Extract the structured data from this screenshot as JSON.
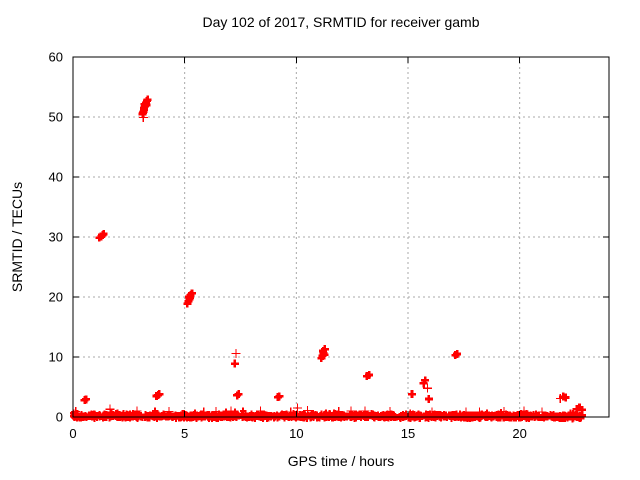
{
  "window": {
    "background": "#ffffff"
  },
  "chart_data": {
    "type": "scatter",
    "title": "Day 102 of 2017, SRMTID for receiver gamb",
    "xlabel": "GPS time / hours",
    "ylabel": "SRMTID / TECUs",
    "xlim": [
      0,
      24
    ],
    "ylim": [
      0,
      60
    ],
    "x_ticks": [
      0,
      5,
      10,
      15,
      20
    ],
    "y_ticks": [
      0,
      10,
      20,
      30,
      40,
      50,
      60
    ],
    "grid": true,
    "legend": "none",
    "marker": "plus",
    "series_color": "#ff0000",
    "grid_color": "#a8a8a8",
    "axis_color": "#000000",
    "points_bold": [
      [
        3.12,
        50.5
      ],
      [
        3.16,
        50.9
      ],
      [
        3.19,
        51.2
      ],
      [
        3.17,
        51.5
      ],
      [
        3.23,
        51.8
      ],
      [
        3.21,
        52.1
      ],
      [
        3.27,
        52.4
      ],
      [
        3.31,
        52.7
      ],
      [
        3.29,
        52.0
      ],
      [
        3.34,
        52.9
      ],
      [
        3.14,
        50.7
      ],
      [
        1.18,
        29.9
      ],
      [
        1.27,
        30.1
      ],
      [
        1.33,
        30.3
      ],
      [
        1.37,
        30.5
      ],
      [
        5.12,
        18.9
      ],
      [
        5.17,
        19.3
      ],
      [
        5.21,
        19.6
      ],
      [
        5.19,
        20.0
      ],
      [
        5.27,
        20.3
      ],
      [
        5.33,
        20.6
      ],
      [
        5.24,
        19.9
      ],
      [
        11.12,
        9.8
      ],
      [
        11.17,
        10.2
      ],
      [
        11.22,
        10.6
      ],
      [
        11.2,
        11.0
      ],
      [
        11.28,
        11.3
      ],
      [
        11.25,
        10.4
      ],
      [
        7.25,
        8.9
      ],
      [
        7.35,
        3.6
      ],
      [
        7.42,
        3.8
      ],
      [
        0.52,
        2.8
      ],
      [
        0.58,
        2.95
      ],
      [
        3.74,
        3.5
      ],
      [
        3.81,
        3.65
      ],
      [
        3.87,
        3.8
      ],
      [
        9.18,
        3.3
      ],
      [
        9.24,
        3.45
      ],
      [
        13.16,
        6.8
      ],
      [
        13.26,
        7.0
      ],
      [
        15.18,
        3.8
      ],
      [
        15.7,
        5.6
      ],
      [
        15.77,
        6.1
      ],
      [
        15.93,
        3.0
      ],
      [
        17.12,
        10.3
      ],
      [
        17.2,
        10.5
      ],
      [
        21.95,
        3.4
      ],
      [
        22.06,
        3.25
      ],
      [
        22.55,
        1.3
      ],
      [
        22.68,
        1.6
      ],
      [
        22.8,
        1.2
      ]
    ],
    "points_thin": [
      [
        3.15,
        49.9
      ],
      [
        7.3,
        10.6
      ],
      [
        15.87,
        4.8
      ],
      [
        21.82,
        3.1
      ],
      [
        0.12,
        0.9
      ],
      [
        1.66,
        1.3
      ],
      [
        2.86,
        1.0
      ],
      [
        4.3,
        0.9
      ],
      [
        5.85,
        0.8
      ],
      [
        6.4,
        0.9
      ],
      [
        7.07,
        1.0
      ],
      [
        8.4,
        1.0
      ],
      [
        9.75,
        0.85
      ],
      [
        10.05,
        1.5
      ],
      [
        10.5,
        1.1
      ],
      [
        11.9,
        0.9
      ],
      [
        12.45,
        1.0
      ],
      [
        13.07,
        1.0
      ],
      [
        14.2,
        0.9
      ],
      [
        15.1,
        0.5
      ],
      [
        16.07,
        0.85
      ],
      [
        17.6,
        0.8
      ],
      [
        18.2,
        0.8
      ],
      [
        19.3,
        0.9
      ],
      [
        20.2,
        1.0
      ],
      [
        21.0,
        0.85
      ]
    ],
    "baseline_band": {
      "x_min": 0.0,
      "x_max": 22.85,
      "count": 1700,
      "y_center": 0.12,
      "y_spread": 0.5,
      "seed": 20170102,
      "gaps": [
        [
          1.08,
          1.16
        ],
        [
          13.24,
          13.36
        ],
        [
          14.5,
          14.6
        ],
        [
          15.66,
          15.76
        ],
        [
          17.18,
          17.26
        ]
      ]
    }
  }
}
